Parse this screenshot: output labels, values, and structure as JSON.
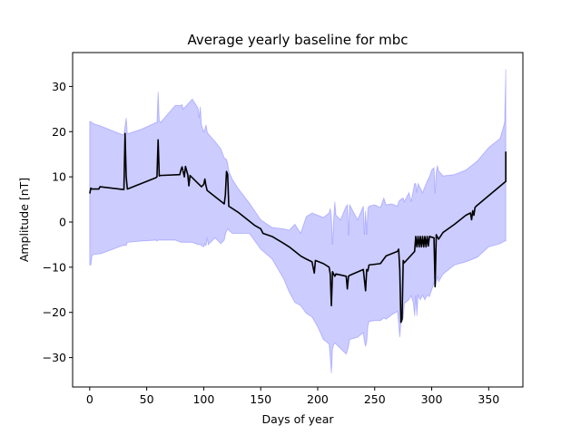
{
  "chart_data": {
    "type": "line",
    "title": "Average yearly baseline for mbc",
    "xlabel": "Days of year",
    "ylabel": "Amplitude [nT]",
    "xlim": [
      -15,
      380
    ],
    "ylim": [
      -36.5,
      37.5
    ],
    "xticks": [
      0,
      50,
      100,
      150,
      200,
      250,
      300,
      350
    ],
    "yticks": [
      -30,
      -20,
      -10,
      0,
      10,
      20,
      30
    ],
    "xtick_labels": [
      "0",
      "50",
      "100",
      "150",
      "200",
      "250",
      "300",
      "350"
    ],
    "ytick_labels": [
      "−30",
      "−20",
      "−10",
      "0",
      "10",
      "20",
      "30"
    ],
    "grid": false,
    "colors": {
      "line": "#000000",
      "band": "#0000ff"
    },
    "series": [
      {
        "kind": "line",
        "x": [
          0,
          1,
          2,
          8,
          9,
          29,
          30,
          31,
          32,
          33,
          58,
          59,
          60,
          61,
          62,
          79,
          80,
          81,
          83,
          84,
          86,
          87,
          88,
          98,
          100,
          101,
          102,
          103,
          118,
          119,
          120,
          121,
          122,
          130,
          145,
          150,
          152,
          160,
          170,
          175,
          180,
          185,
          190,
          195,
          197,
          198,
          205,
          210,
          211,
          212,
          213,
          214,
          215,
          216,
          225,
          226,
          227,
          228,
          240,
          242,
          243,
          244,
          245,
          255,
          260,
          270,
          271,
          272,
          273,
          274,
          275,
          276,
          285,
          286,
          287,
          288,
          289,
          290,
          291,
          292,
          293,
          294,
          295,
          296,
          297,
          298,
          302,
          303,
          304,
          305,
          306,
          310,
          320,
          330,
          334,
          335,
          336,
          337,
          338,
          339,
          365,
          365
        ],
        "y": [
          6.3,
          7.5,
          7.3,
          7.3,
          7.8,
          7.2,
          7.2,
          19.6,
          10,
          7.3,
          9.8,
          10,
          18.2,
          10.2,
          10.3,
          10.5,
          11.5,
          12.2,
          10,
          12.3,
          10.5,
          8,
          10.3,
          7.8,
          8.3,
          9.5,
          8,
          7,
          4,
          6,
          11.2,
          10.5,
          3.5,
          2.2,
          -0.8,
          -1.5,
          -2.5,
          -3.2,
          -4.7,
          -5.5,
          -6.5,
          -7.5,
          -8.2,
          -8.8,
          -11.3,
          -8.5,
          -9.2,
          -10,
          -11.5,
          -18.5,
          -11,
          -11.5,
          -12,
          -11.5,
          -12,
          -14.8,
          -12,
          -11.8,
          -10.5,
          -15.2,
          -10.5,
          -10.8,
          -9.5,
          -9.2,
          -7.5,
          -6.5,
          -6,
          -10.5,
          -22.2,
          -21.5,
          -8.5,
          -9,
          -6.5,
          -3.2,
          -5.5,
          -3.2,
          -5.5,
          -3.2,
          -5.5,
          -3.2,
          -5.5,
          -3.2,
          -5.5,
          -3.2,
          -5.3,
          -3.2,
          -3.5,
          -14.3,
          -2.8,
          -3.3,
          -3.8,
          -2.3,
          -0.5,
          1.5,
          2,
          0.5,
          2.5,
          1.5,
          3.2,
          3.5,
          9,
          15.6
        ]
      },
      {
        "kind": "band",
        "x": [
          0,
          1,
          2,
          3,
          10,
          29,
          30,
          31,
          32,
          33,
          45,
          58,
          59,
          60,
          61,
          62,
          75,
          80,
          81,
          82,
          90,
          95,
          96,
          97,
          98,
          100,
          101,
          102,
          103,
          104,
          110,
          115,
          118,
          119,
          120,
          121,
          122,
          125,
          130,
          140,
          150,
          160,
          170,
          175,
          180,
          185,
          190,
          195,
          200,
          205,
          210,
          211,
          212,
          213,
          214,
          215,
          216,
          220,
          225,
          226,
          227,
          228,
          235,
          240,
          241,
          242,
          243,
          244,
          245,
          250,
          255,
          258,
          260,
          265,
          270,
          271,
          272,
          273,
          274,
          275,
          276,
          280,
          282,
          284,
          285,
          286,
          287,
          288,
          290,
          292,
          294,
          296,
          298,
          300,
          302,
          303,
          304,
          305,
          306,
          310,
          320,
          330,
          340,
          350,
          360,
          364,
          365,
          365
        ],
        "upper": [
          22.2,
          22.2,
          22,
          21.8,
          21.2,
          19.3,
          19.3,
          21.2,
          23,
          19.5,
          20.5,
          22,
          22,
          28.8,
          22.5,
          22,
          25.8,
          25.8,
          26,
          25,
          27.2,
          25.2,
          23,
          25.5,
          21.5,
          20,
          20.5,
          21.5,
          20,
          19.5,
          17.8,
          16.2,
          14.2,
          14,
          13.8,
          13,
          11.2,
          9.5,
          7.5,
          4.2,
          0.5,
          -1.2,
          -1.5,
          -1.8,
          -0.5,
          -2.5,
          1.2,
          2,
          1.5,
          1,
          2,
          3,
          1,
          -5,
          0.5,
          4.5,
          1.5,
          0.5,
          3.5,
          3.8,
          -3,
          3.8,
          0.5,
          3.5,
          -2.8,
          2.5,
          -2.8,
          3,
          3.5,
          3.8,
          3.2,
          5.3,
          3.8,
          4,
          3.5,
          4.5,
          4.8,
          5,
          5.2,
          5.3,
          4.5,
          6.5,
          4.5,
          7.2,
          8.5,
          8.5,
          6.5,
          8.5,
          7.5,
          6.5,
          7.8,
          9,
          10,
          11.5,
          12,
          6.3,
          11,
          12.5,
          11.3,
          10.2,
          10.5,
          11.5,
          13.5,
          16.5,
          18.5,
          22,
          33.8,
          15.6
        ],
        "lower": [
          -9.5,
          -9.5,
          -7.5,
          -7.2,
          -7,
          -5.2,
          -5.2,
          -5.2,
          -5.2,
          -4.5,
          -4.2,
          -4,
          -4.2,
          -4,
          -4,
          -4,
          -4,
          -4.5,
          -4.5,
          -4.5,
          -4.5,
          -5,
          -5,
          -5,
          -5.2,
          -5.5,
          -4.8,
          -5.2,
          -3.5,
          -5,
          -3.5,
          -4.8,
          -4,
          -2.8,
          -2,
          -1.5,
          -1.8,
          -2.5,
          -2.5,
          -2.5,
          -6,
          -8.2,
          -12.5,
          -15.5,
          -17.8,
          -18.5,
          -20.2,
          -21,
          -23.2,
          -26,
          -27,
          -30,
          -33.5,
          -28,
          -27.2,
          -26.8,
          -27,
          -28,
          -29.2,
          -28.5,
          -27.5,
          -26,
          -25.5,
          -24.5,
          -26.5,
          -27.5,
          -26.5,
          -23,
          -22,
          -21.8,
          -21.8,
          -21.2,
          -21.5,
          -20.5,
          -19.8,
          -22.5,
          -25.5,
          -22.2,
          -22,
          -21.2,
          -18,
          -17.2,
          -16.3,
          -18,
          -20.8,
          -16.2,
          -20.8,
          -16.2,
          -17.2,
          -16.2,
          -17.2,
          -16.2,
          -16.5,
          -15,
          -13.5,
          -14.5,
          -13.2,
          -12,
          -13.2,
          -11.5,
          -9.5,
          -8.8,
          -7.8,
          -5.5,
          -4.8,
          -4.2,
          -4.2,
          15.6
        ]
      }
    ]
  }
}
